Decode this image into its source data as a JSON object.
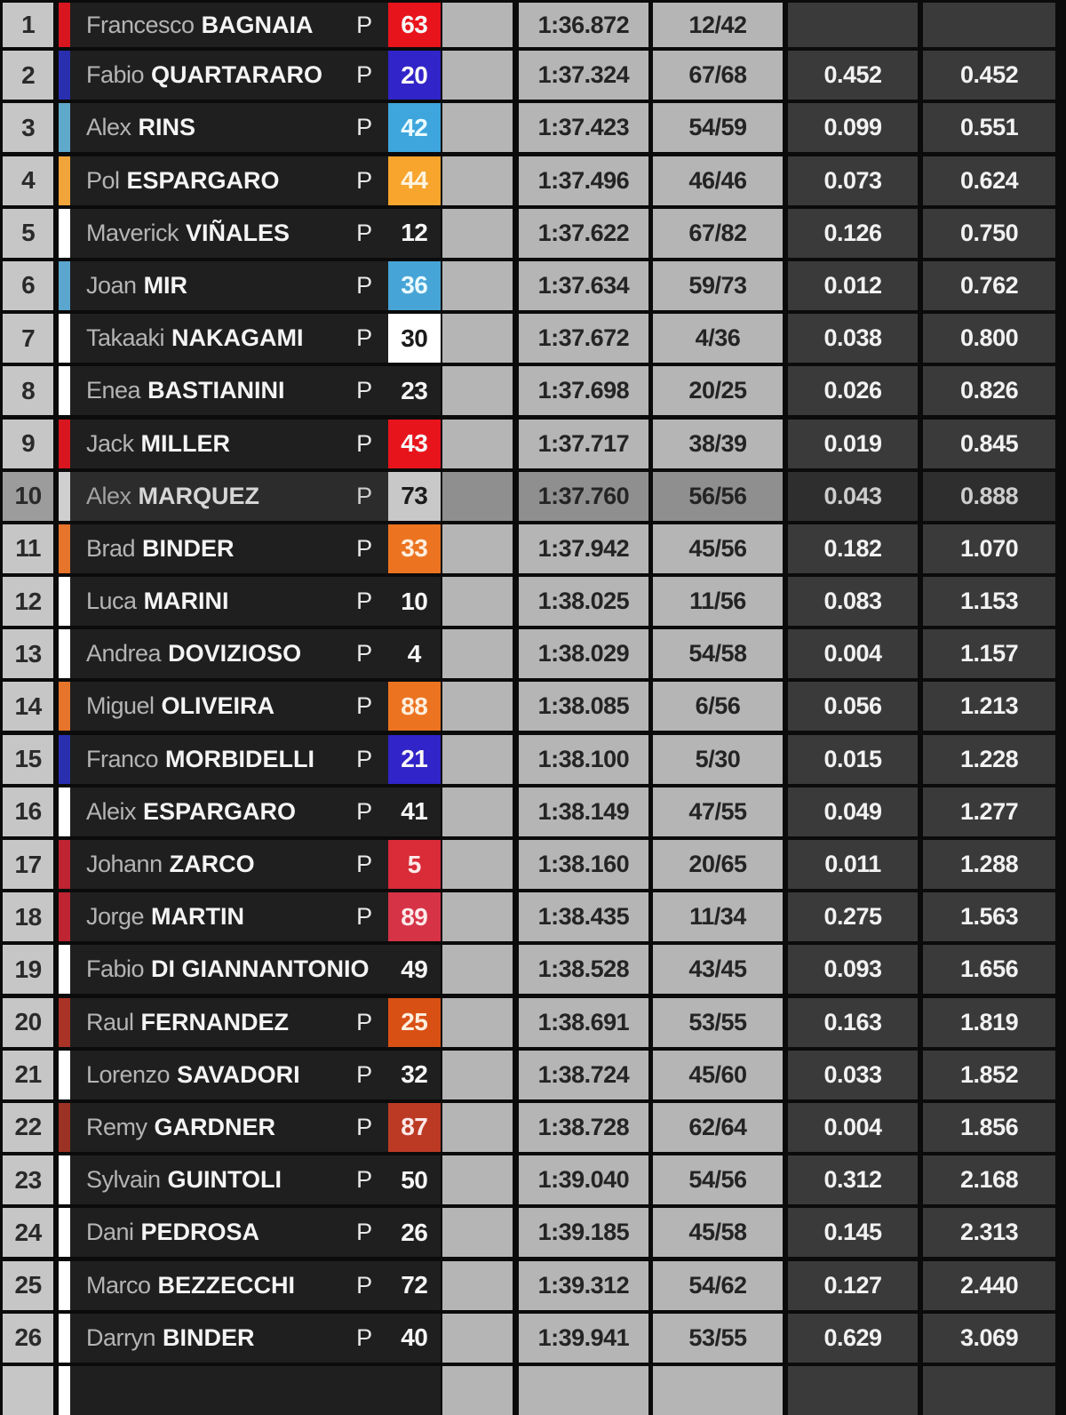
{
  "table": {
    "description": "MotoGP timing classification list",
    "columns": [
      "position",
      "team-color",
      "rider-name",
      "P",
      "number",
      "best-lap-time",
      "laps",
      "gap-previous",
      "gap-leader"
    ],
    "selected_position": "10",
    "theme": {
      "background": "#0b0b0b",
      "position_cell_bg": "#c6c6c6",
      "light_cell_bg": "#b5b5b5",
      "dark_cell_bg": "#3a3a3a",
      "name_cell_bg": "#1f1f1f",
      "light_cell_text": "#242424",
      "dark_cell_text": "#f2f2f2",
      "first_name_text": "#b4b4b4",
      "last_name_text": "#f4f4f4",
      "selected_light_cell_bg": "#8f8f8f",
      "selected_dark_cell_bg": "#2e2e2e"
    },
    "rows": [
      {
        "pos": "1",
        "first": "Francesco",
        "last": "BAGNAIA",
        "p": "P",
        "number": "63",
        "stripe": "#d8161f",
        "box_bg": "#e8141c",
        "box_fg": "#f7f7f7",
        "lap": "1:36.872",
        "laps": "12/42",
        "gap": "",
        "total": "",
        "selected": false,
        "partial": false
      },
      {
        "pos": "2",
        "first": "Fabio",
        "last": "QUARTARARO",
        "p": "P",
        "number": "20",
        "stripe": "#2a2fb0",
        "box_bg": "#3124c8",
        "box_fg": "#f7f7f7",
        "lap": "1:37.324",
        "laps": "67/68",
        "gap": "0.452",
        "total": "0.452",
        "selected": false,
        "partial": false
      },
      {
        "pos": "3",
        "first": "Alex",
        "last": "RINS",
        "p": "P",
        "number": "42",
        "stripe": "#5fa9cb",
        "box_bg": "#3ea6dc",
        "box_fg": "#eafaff",
        "lap": "1:37.423",
        "laps": "54/59",
        "gap": "0.099",
        "total": "0.551",
        "selected": false,
        "partial": false
      },
      {
        "pos": "4",
        "first": "Pol",
        "last": "ESPARGARO",
        "p": "P",
        "number": "44",
        "stripe": "#f0a43a",
        "box_bg": "#f7a52d",
        "box_fg": "#fdf3df",
        "lap": "1:37.496",
        "laps": "46/46",
        "gap": "0.073",
        "total": "0.624",
        "selected": false,
        "partial": false
      },
      {
        "pos": "5",
        "first": "Maverick",
        "last": "VIÑALES",
        "p": "P",
        "number": "12",
        "stripe": "#ffffff",
        "box_bg": "",
        "box_fg": "#f5f5f5",
        "lap": "1:37.622",
        "laps": "67/82",
        "gap": "0.126",
        "total": "0.750",
        "selected": false,
        "partial": false
      },
      {
        "pos": "6",
        "first": "Joan",
        "last": "MIR",
        "p": "P",
        "number": "36",
        "stripe": "#5aa6ce",
        "box_bg": "#47a4d6",
        "box_fg": "#eafaff",
        "lap": "1:37.634",
        "laps": "59/73",
        "gap": "0.012",
        "total": "0.762",
        "selected": false,
        "partial": false
      },
      {
        "pos": "7",
        "first": "Takaaki",
        "last": "NAKAGAMI",
        "p": "P",
        "number": "30",
        "stripe": "#ffffff",
        "box_bg": "#ffffff",
        "box_fg": "#1b1b1b",
        "lap": "1:37.672",
        "laps": "4/36",
        "gap": "0.038",
        "total": "0.800",
        "selected": false,
        "partial": false
      },
      {
        "pos": "8",
        "first": "Enea",
        "last": "BASTIANINI",
        "p": "P",
        "number": "23",
        "stripe": "#ffffff",
        "box_bg": "",
        "box_fg": "#f5f5f5",
        "lap": "1:37.698",
        "laps": "20/25",
        "gap": "0.026",
        "total": "0.826",
        "selected": false,
        "partial": false
      },
      {
        "pos": "9",
        "first": "Jack",
        "last": "MILLER",
        "p": "P",
        "number": "43",
        "stripe": "#d8161f",
        "box_bg": "#e8141c",
        "box_fg": "#f7f7f7",
        "lap": "1:37.717",
        "laps": "38/39",
        "gap": "0.019",
        "total": "0.845",
        "selected": false,
        "partial": false
      },
      {
        "pos": "10",
        "first": "Alex",
        "last": "MARQUEZ",
        "p": "P",
        "number": "73",
        "stripe": "#cfcfcf",
        "box_bg": "#c8c8c8",
        "box_fg": "#1b1b1b",
        "lap": "1:37.760",
        "laps": "56/56",
        "gap": "0.043",
        "total": "0.888",
        "selected": true,
        "partial": false
      },
      {
        "pos": "11",
        "first": "Brad",
        "last": "BINDER",
        "p": "P",
        "number": "33",
        "stripe": "#e6742b",
        "box_bg": "#ec7420",
        "box_fg": "#fdeede",
        "lap": "1:37.942",
        "laps": "45/56",
        "gap": "0.182",
        "total": "1.070",
        "selected": false,
        "partial": false
      },
      {
        "pos": "12",
        "first": "Luca",
        "last": "MARINI",
        "p": "P",
        "number": "10",
        "stripe": "#ffffff",
        "box_bg": "",
        "box_fg": "#f5f5f5",
        "lap": "1:38.025",
        "laps": "11/56",
        "gap": "0.083",
        "total": "1.153",
        "selected": false,
        "partial": false
      },
      {
        "pos": "13",
        "first": "Andrea",
        "last": "DOVIZIOSO",
        "p": "P",
        "number": "4",
        "stripe": "#ffffff",
        "box_bg": "",
        "box_fg": "#f5f5f5",
        "lap": "1:38.029",
        "laps": "54/58",
        "gap": "0.004",
        "total": "1.157",
        "selected": false,
        "partial": false
      },
      {
        "pos": "14",
        "first": "Miguel",
        "last": "OLIVEIRA",
        "p": "P",
        "number": "88",
        "stripe": "#e6742b",
        "box_bg": "#ec7420",
        "box_fg": "#fdeede",
        "lap": "1:38.085",
        "laps": "6/56",
        "gap": "0.056",
        "total": "1.213",
        "selected": false,
        "partial": false
      },
      {
        "pos": "15",
        "first": "Franco",
        "last": "MORBIDELLI",
        "p": "P",
        "number": "21",
        "stripe": "#2a2fb0",
        "box_bg": "#3124c8",
        "box_fg": "#f7f7f7",
        "lap": "1:38.100",
        "laps": "5/30",
        "gap": "0.015",
        "total": "1.228",
        "selected": false,
        "partial": false
      },
      {
        "pos": "16",
        "first": "Aleix",
        "last": "ESPARGARO",
        "p": "P",
        "number": "41",
        "stripe": "#ffffff",
        "box_bg": "",
        "box_fg": "#f5f5f5",
        "lap": "1:38.149",
        "laps": "47/55",
        "gap": "0.049",
        "total": "1.277",
        "selected": false,
        "partial": false
      },
      {
        "pos": "17",
        "first": "Johann",
        "last": "ZARCO",
        "p": "P",
        "number": "5",
        "stripe": "#bf2433",
        "box_bg": "#d92b38",
        "box_fg": "#fbe9e9",
        "lap": "1:38.160",
        "laps": "20/65",
        "gap": "0.011",
        "total": "1.288",
        "selected": false,
        "partial": false
      },
      {
        "pos": "18",
        "first": "Jorge",
        "last": "MARTIN",
        "p": "P",
        "number": "89",
        "stripe": "#bf2433",
        "box_bg": "#d63347",
        "box_fg": "#fbe9e9",
        "lap": "1:38.435",
        "laps": "11/34",
        "gap": "0.275",
        "total": "1.563",
        "selected": false,
        "partial": false
      },
      {
        "pos": "19",
        "first": "Fabio",
        "last": "DI GIANNANTONIO",
        "p": "",
        "number": "49",
        "stripe": "#ffffff",
        "box_bg": "",
        "box_fg": "#f5f5f5",
        "lap": "1:38.528",
        "laps": "43/45",
        "gap": "0.093",
        "total": "1.656",
        "selected": false,
        "partial": false
      },
      {
        "pos": "20",
        "first": "Raul",
        "last": "FERNANDEZ",
        "p": "P",
        "number": "25",
        "stripe": "#a83326",
        "box_bg": "#d95014",
        "box_fg": "#fdeede",
        "lap": "1:38.691",
        "laps": "53/55",
        "gap": "0.163",
        "total": "1.819",
        "selected": false,
        "partial": false
      },
      {
        "pos": "21",
        "first": "Lorenzo",
        "last": "SAVADORI",
        "p": "P",
        "number": "32",
        "stripe": "#ffffff",
        "box_bg": "",
        "box_fg": "#f5f5f5",
        "lap": "1:38.724",
        "laps": "45/60",
        "gap": "0.033",
        "total": "1.852",
        "selected": false,
        "partial": false
      },
      {
        "pos": "22",
        "first": "Remy",
        "last": "GARDNER",
        "p": "P",
        "number": "87",
        "stripe": "#9c3223",
        "box_bg": "#bc3a24",
        "box_fg": "#fbe9e9",
        "lap": "1:38.728",
        "laps": "62/64",
        "gap": "0.004",
        "total": "1.856",
        "selected": false,
        "partial": false
      },
      {
        "pos": "23",
        "first": "Sylvain",
        "last": "GUINTOLI",
        "p": "P",
        "number": "50",
        "stripe": "#ffffff",
        "box_bg": "",
        "box_fg": "#f5f5f5",
        "lap": "1:39.040",
        "laps": "54/56",
        "gap": "0.312",
        "total": "2.168",
        "selected": false,
        "partial": false
      },
      {
        "pos": "24",
        "first": "Dani",
        "last": "PEDROSA",
        "p": "P",
        "number": "26",
        "stripe": "#ffffff",
        "box_bg": "",
        "box_fg": "#f5f5f5",
        "lap": "1:39.185",
        "laps": "45/58",
        "gap": "0.145",
        "total": "2.313",
        "selected": false,
        "partial": false
      },
      {
        "pos": "25",
        "first": "Marco",
        "last": "BEZZECCHI",
        "p": "P",
        "number": "72",
        "stripe": "#ffffff",
        "box_bg": "",
        "box_fg": "#f5f5f5",
        "lap": "1:39.312",
        "laps": "54/62",
        "gap": "0.127",
        "total": "2.440",
        "selected": false,
        "partial": false
      },
      {
        "pos": "26",
        "first": "Darryn",
        "last": "BINDER",
        "p": "P",
        "number": "40",
        "stripe": "#ffffff",
        "box_bg": "",
        "box_fg": "#f5f5f5",
        "lap": "1:39.941",
        "laps": "53/55",
        "gap": "0.629",
        "total": "3.069",
        "selected": false,
        "partial": false
      },
      {
        "pos": "",
        "first": "",
        "last": "",
        "p": "",
        "number": "",
        "stripe": "#ffffff",
        "box_bg": "",
        "box_fg": "",
        "lap": "",
        "laps": "",
        "gap": "",
        "total": "",
        "selected": false,
        "partial": true
      }
    ]
  }
}
